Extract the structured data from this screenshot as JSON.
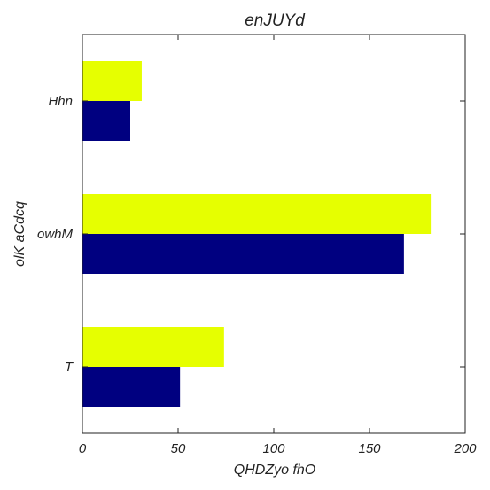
{
  "chart_data": {
    "type": "bar",
    "orientation": "horizontal",
    "title": "enJUYd",
    "xlabel": "QHDZyo fhO",
    "ylabel": "olK aCdcq",
    "categories": [
      "T",
      "owhM",
      "Hhn"
    ],
    "series": [
      {
        "color": "#000080",
        "values": [
          51,
          168,
          25
        ]
      },
      {
        "color": "#e6ff00",
        "values": [
          74,
          182,
          31
        ]
      }
    ],
    "xlim": [
      0,
      200
    ],
    "xticks": [
      "0",
      "50",
      "100",
      "150",
      "200"
    ],
    "grid": false,
    "legend": false
  }
}
